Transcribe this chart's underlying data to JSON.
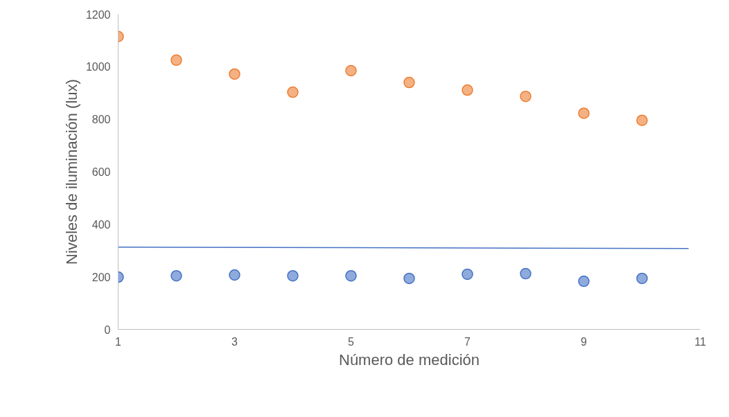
{
  "chart_data": {
    "type": "scatter",
    "xlabel": "Número de medición",
    "ylabel": "Niveles de iluminación (lux)",
    "x": [
      1,
      2,
      3,
      4,
      5,
      6,
      7,
      8,
      9,
      10
    ],
    "series": [
      {
        "color": "#ed7d31",
        "values": [
          1115,
          1025,
          972,
          903,
          985,
          940,
          911,
          887,
          823,
          796
        ]
      },
      {
        "color": "#4472c4",
        "values": [
          199,
          204,
          207,
          204,
          204,
          194,
          210,
          212,
          183,
          194
        ]
      },
      {
        "type": "line",
        "marker": "none",
        "color": "#4472c4",
        "x": [
          1,
          10.8
        ],
        "values": [
          313,
          308
        ]
      }
    ],
    "xlim": [
      1,
      11
    ],
    "xticks": [
      1,
      3,
      5,
      7,
      9,
      11
    ],
    "ylim": [
      0,
      1200
    ],
    "yticks": [
      0,
      200,
      400,
      600,
      800,
      1000,
      1200
    ],
    "grid": false,
    "marker": "circle",
    "line_style": "solid"
  }
}
